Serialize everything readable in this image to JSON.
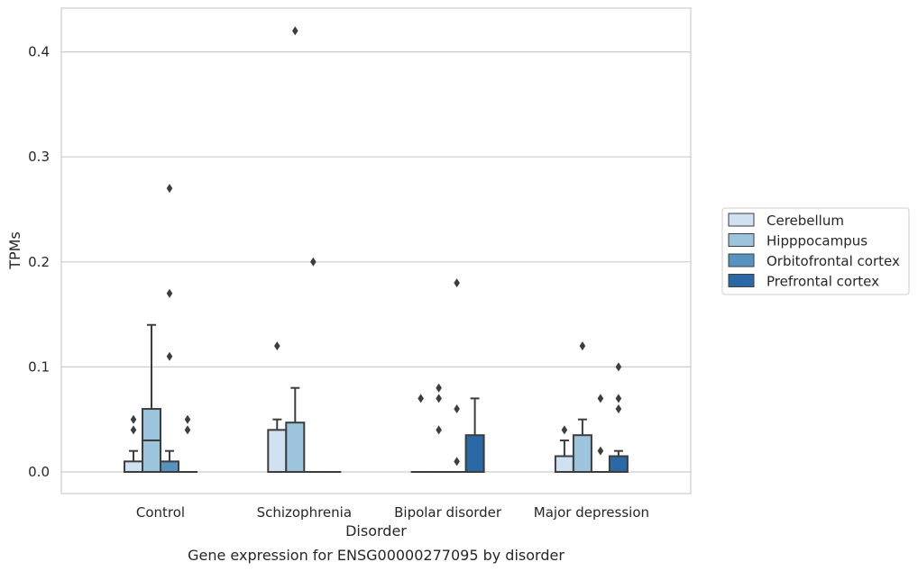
{
  "chart_data": {
    "type": "box",
    "caption": "Gene expression for ENSG00000277095 by disorder",
    "xlabel": "Disorder",
    "ylabel": "TPMs",
    "ylim": [
      -0.02,
      0.43
    ],
    "yticks": [
      0.0,
      0.1,
      0.2,
      0.3,
      0.4
    ],
    "ytick_labels": [
      "0.0",
      "0.1",
      "0.2",
      "0.3",
      "0.4"
    ],
    "grid": "horizontal",
    "legend_position": "right",
    "categories": [
      "Control",
      "Schizophrenia",
      "Bipolar disorder",
      "Major depression"
    ],
    "series": [
      {
        "name": "Cerebellum",
        "color": "#d0e1f2",
        "boxes": [
          {
            "q1": 0.0,
            "median": 0.0,
            "q3": 0.01,
            "whisker_low": 0.0,
            "whisker_high": 0.02,
            "outliers": [
              0.04,
              0.05
            ]
          },
          {
            "q1": 0.0,
            "median": 0.0,
            "q3": 0.04,
            "whisker_low": 0.0,
            "whisker_high": 0.05,
            "outliers": [
              0.12
            ]
          },
          {
            "q1": 0.0,
            "median": 0.0,
            "q3": 0.0,
            "whisker_low": 0.0,
            "whisker_high": 0.0,
            "outliers": [
              0.07
            ]
          },
          {
            "q1": 0.0,
            "median": 0.0,
            "q3": 0.015,
            "whisker_low": 0.0,
            "whisker_high": 0.03,
            "outliers": [
              0.04
            ]
          }
        ]
      },
      {
        "name": "Hipppocampus",
        "color": "#9dc4dd",
        "boxes": [
          {
            "q1": 0.0,
            "median": 0.03,
            "q3": 0.06,
            "whisker_low": 0.0,
            "whisker_high": 0.14,
            "outliers": []
          },
          {
            "q1": 0.0,
            "median": 0.0,
            "q3": 0.047,
            "whisker_low": 0.0,
            "whisker_high": 0.08,
            "outliers": [
              0.42
            ]
          },
          {
            "q1": 0.0,
            "median": 0.0,
            "q3": 0.0,
            "whisker_low": 0.0,
            "whisker_high": 0.0,
            "outliers": [
              0.04,
              0.07,
              0.08
            ]
          },
          {
            "q1": 0.0,
            "median": 0.0,
            "q3": 0.035,
            "whisker_low": 0.0,
            "whisker_high": 0.05,
            "outliers": [
              0.12
            ]
          }
        ]
      },
      {
        "name": "Orbitofrontal cortex",
        "color": "#5892c0",
        "boxes": [
          {
            "q1": 0.0,
            "median": 0.0,
            "q3": 0.01,
            "whisker_low": 0.0,
            "whisker_high": 0.02,
            "outliers": [
              0.11,
              0.17,
              0.27
            ]
          },
          {
            "q1": 0.0,
            "median": 0.0,
            "q3": 0.0,
            "whisker_low": 0.0,
            "whisker_high": 0.0,
            "outliers": [
              0.2
            ]
          },
          {
            "q1": 0.0,
            "median": 0.0,
            "q3": 0.0,
            "whisker_low": 0.0,
            "whisker_high": 0.0,
            "outliers": [
              0.01,
              0.06,
              0.18
            ]
          },
          {
            "q1": 0.0,
            "median": 0.0,
            "q3": 0.0,
            "whisker_low": 0.0,
            "whisker_high": 0.0,
            "outliers": [
              0.02,
              0.07
            ]
          }
        ]
      },
      {
        "name": "Prefrontal cortex",
        "color": "#2a68a6",
        "boxes": [
          {
            "q1": 0.0,
            "median": 0.0,
            "q3": 0.0,
            "whisker_low": 0.0,
            "whisker_high": 0.0,
            "outliers": [
              0.04,
              0.05
            ]
          },
          {
            "q1": 0.0,
            "median": 0.0,
            "q3": 0.0,
            "whisker_low": 0.0,
            "whisker_high": 0.0,
            "outliers": []
          },
          {
            "q1": 0.0,
            "median": 0.0,
            "q3": 0.035,
            "whisker_low": 0.0,
            "whisker_high": 0.07,
            "outliers": []
          },
          {
            "q1": 0.0,
            "median": 0.0,
            "q3": 0.015,
            "whisker_low": 0.0,
            "whisker_high": 0.02,
            "outliers": [
              0.06,
              0.07,
              0.1
            ]
          }
        ]
      }
    ]
  }
}
